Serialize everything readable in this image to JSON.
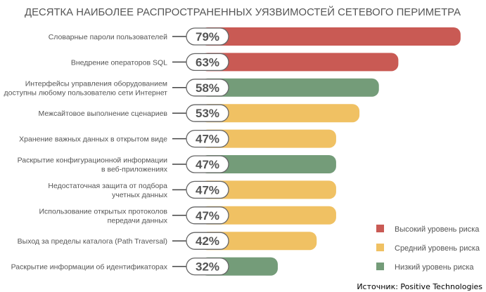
{
  "chart_data": {
    "type": "bar",
    "orientation": "horizontal",
    "title": "ДЕСЯТКА НАИБОЛЕЕ РАСПРОСТРАНЕННЫХ УЯЗВИМОСТЕЙ СЕТЕВОГО ПЕРИМЕТРА",
    "categories": [
      [
        "Словарные пароли пользователей"
      ],
      [
        "Внедрение операторов SQL"
      ],
      [
        "Интерфейсы управления оборудованием",
        "доступны любому пользователю сети Интернет"
      ],
      [
        "Межсайтовое выполнение сценариев"
      ],
      [
        "Хранение важных данных в открытом виде"
      ],
      [
        "Раскрытие конфигурационной информации",
        "в веб-приложениях"
      ],
      [
        "Недостаточная защита от подбора",
        "учетных данных"
      ],
      [
        "Использование открытых протоколов",
        "передачи данных"
      ],
      [
        "Выход за пределы каталога (Path Traversal)"
      ],
      [
        "Раскрытие информации об идентификаторах"
      ]
    ],
    "values": [
      79,
      63,
      58,
      53,
      47,
      47,
      47,
      47,
      42,
      32
    ],
    "value_labels": [
      "79%",
      "63%",
      "58%",
      "53%",
      "47%",
      "47%",
      "47%",
      "47%",
      "42%",
      "32%"
    ],
    "risk": [
      "high",
      "high",
      "low",
      "medium",
      "medium",
      "low",
      "medium",
      "medium",
      "medium",
      "low"
    ],
    "legend": [
      {
        "key": "high",
        "label": "Высокий уровень риска",
        "color": "#c95a54"
      },
      {
        "key": "medium",
        "label": "Средний уровень риска",
        "color": "#f0c163"
      },
      {
        "key": "low",
        "label": "Низкий уровень риска",
        "color": "#749c79"
      }
    ],
    "legend_position": "bottom-right",
    "grid": false,
    "xlim": [
      0,
      100
    ]
  },
  "source": "Источник:  Positive Technologies"
}
